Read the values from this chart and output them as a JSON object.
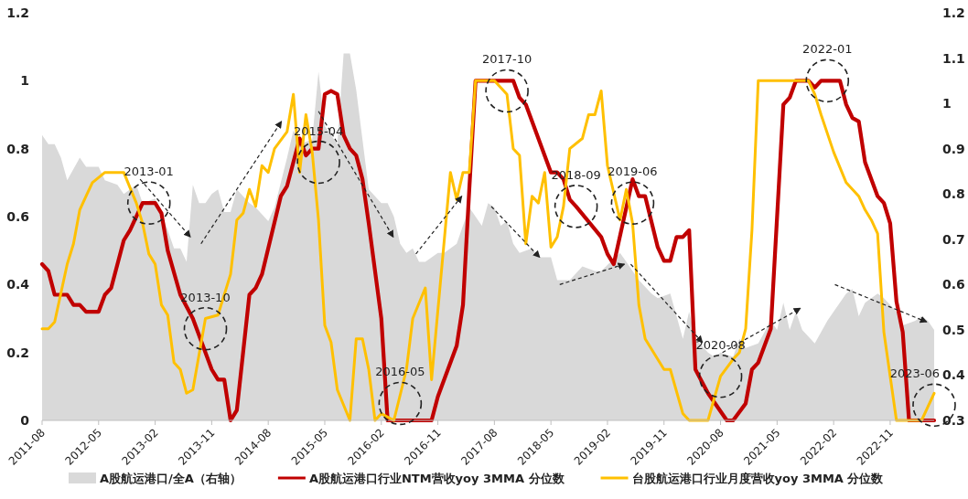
{
  "chart_data": {
    "type": "line",
    "xlim": [
      "2011-08",
      "2023-06"
    ],
    "xticks": [
      "2011-08",
      "2012-05",
      "2013-02",
      "2013-11",
      "2014-08",
      "2015-05",
      "2016-02",
      "2016-11",
      "2017-08",
      "2018-05",
      "2019-02",
      "2019-11",
      "2020-08",
      "2021-05",
      "2022-02",
      "2022-11"
    ],
    "ylim": [
      0,
      1.2
    ],
    "yticks": [
      0,
      0.2,
      0.4,
      0.6,
      0.8,
      1,
      1.2
    ],
    "y2lim": [
      0.3,
      1.2
    ],
    "y2ticks": [
      0.3,
      0.4,
      0.5,
      0.6,
      0.7,
      0.8,
      0.9,
      1,
      1.1,
      1.2
    ],
    "legend": "bottom",
    "grid": false,
    "series": [
      {
        "name": "A股航运港口/全A（右轴）",
        "type": "area",
        "axis": "y2",
        "color": "#d9d9d9",
        "x": [
          "2011-08",
          "2011-09",
          "2011-10",
          "2011-11",
          "2011-12",
          "2012-02",
          "2012-03",
          "2012-05",
          "2012-06",
          "2012-08",
          "2012-09",
          "2012-11",
          "2012-12",
          "2013-02",
          "2013-04",
          "2013-05",
          "2013-06",
          "2013-07",
          "2013-08",
          "2013-09",
          "2013-10",
          "2013-11",
          "2013-12",
          "2014-01",
          "2014-02",
          "2014-03",
          "2014-05",
          "2014-06",
          "2014-08",
          "2014-09",
          "2014-11",
          "2014-12",
          "2015-01",
          "2015-03",
          "2015-04",
          "2015-05",
          "2015-07",
          "2015-08",
          "2015-09",
          "2015-10",
          "2015-11",
          "2015-12",
          "2016-02",
          "2016-03",
          "2016-04",
          "2016-05",
          "2016-06",
          "2016-07",
          "2016-08",
          "2016-09",
          "2016-11",
          "2016-12",
          "2017-02",
          "2017-04",
          "2017-05",
          "2017-06",
          "2017-07",
          "2017-08",
          "2017-09",
          "2017-10",
          "2017-11",
          "2017-12",
          "2018-02",
          "2018-03",
          "2018-05",
          "2018-06",
          "2018-08",
          "2018-10",
          "2018-12",
          "2019-01",
          "2019-04",
          "2019-05",
          "2019-07",
          "2019-09",
          "2019-10",
          "2019-12",
          "2020-01",
          "2020-02",
          "2020-03",
          "2020-04",
          "2020-06",
          "2020-07",
          "2020-08",
          "2020-10",
          "2020-11",
          "2020-12",
          "2021-02",
          "2021-04",
          "2021-05",
          "2021-06",
          "2021-07",
          "2021-08",
          "2021-09",
          "2021-11",
          "2022-01",
          "2022-02",
          "2022-04",
          "2022-05",
          "2022-06",
          "2022-07",
          "2022-09",
          "2022-10",
          "2022-12",
          "2023-01",
          "2023-03",
          "2023-04",
          "2023-05",
          "2023-06"
        ],
        "values": [
          0.93,
          0.91,
          0.91,
          0.88,
          0.83,
          0.88,
          0.86,
          0.86,
          0.83,
          0.82,
          0.8,
          0.82,
          0.78,
          0.79,
          0.72,
          0.68,
          0.68,
          0.65,
          0.82,
          0.78,
          0.78,
          0.8,
          0.81,
          0.76,
          0.76,
          0.81,
          0.78,
          0.77,
          0.74,
          0.77,
          0.88,
          0.94,
          0.91,
          0.92,
          1.07,
          0.95,
          0.91,
          1.11,
          1.11,
          1.03,
          0.92,
          0.81,
          0.78,
          0.78,
          0.75,
          0.69,
          0.67,
          0.68,
          0.65,
          0.65,
          0.67,
          0.67,
          0.69,
          0.77,
          0.75,
          0.73,
          0.78,
          0.77,
          0.73,
          0.74,
          0.69,
          0.67,
          0.68,
          0.66,
          0.66,
          0.61,
          0.61,
          0.64,
          0.63,
          0.63,
          0.67,
          0.65,
          0.61,
          0.58,
          0.57,
          0.58,
          0.53,
          0.48,
          0.54,
          0.48,
          0.45,
          0.44,
          0.45,
          0.44,
          0.48,
          0.46,
          0.47,
          0.52,
          0.5,
          0.56,
          0.5,
          0.54,
          0.5,
          0.47,
          0.52,
          0.54,
          0.58,
          0.59,
          0.53,
          0.56,
          0.58,
          0.57,
          0.54,
          0.51,
          0.52,
          0.53,
          0.52,
          0.5
        ]
      },
      {
        "name": "A股航运港口行业NTM营收yoy 3MMA 分位数",
        "color": "#c00000",
        "x": [
          "2011-08",
          "2011-09",
          "2011-10",
          "2011-12",
          "2012-01",
          "2012-02",
          "2012-03",
          "2012-05",
          "2012-06",
          "2012-07",
          "2012-09",
          "2012-10",
          "2012-12",
          "2013-02",
          "2013-03",
          "2013-04",
          "2013-06",
          "2013-08",
          "2013-11",
          "2013-12",
          "2014-01",
          "2014-02",
          "2014-03",
          "2014-05",
          "2014-06",
          "2014-07",
          "2014-10",
          "2014-11",
          "2015-01",
          "2015-02",
          "2015-03",
          "2015-04",
          "2015-05",
          "2015-06",
          "2015-07",
          "2015-08",
          "2015-09",
          "2015-10",
          "2015-11",
          "2015-12",
          "2016-02",
          "2016-03",
          "2016-10",
          "2016-11",
          "2017-02",
          "2017-03",
          "2017-04",
          "2017-05",
          "2017-11",
          "2017-12",
          "2018-01",
          "2018-05",
          "2018-06",
          "2018-07",
          "2018-08",
          "2018-09",
          "2019-01",
          "2019-02",
          "2019-03",
          "2019-06",
          "2019-07",
          "2019-08",
          "2019-10",
          "2019-11",
          "2019-12",
          "2020-01",
          "2020-02",
          "2020-03",
          "2020-04",
          "2020-06",
          "2020-09",
          "2020-10",
          "2020-12",
          "2021-01",
          "2021-02",
          "2021-04",
          "2021-06",
          "2021-07",
          "2021-08",
          "2021-10",
          "2021-11",
          "2021-12",
          "2022-03",
          "2022-04",
          "2022-05",
          "2022-06",
          "2022-07",
          "2022-09",
          "2022-10",
          "2022-11",
          "2022-12",
          "2023-01",
          "2023-02",
          "2023-06"
        ],
        "values": [
          0.46,
          0.44,
          0.37,
          0.37,
          0.34,
          0.34,
          0.32,
          0.32,
          0.37,
          0.39,
          0.53,
          0.56,
          0.64,
          0.64,
          0.61,
          0.5,
          0.37,
          0.3,
          0.15,
          0.12,
          0.12,
          0,
          0.03,
          0.37,
          0.39,
          0.43,
          0.66,
          0.69,
          0.83,
          0.78,
          0.8,
          0.8,
          0.96,
          0.97,
          0.96,
          0.84,
          0.8,
          0.78,
          0.71,
          0.58,
          0.3,
          0,
          0,
          0.07,
          0.22,
          0.34,
          0.68,
          1,
          1,
          0.95,
          0.93,
          0.73,
          0.73,
          0.71,
          0.65,
          0.63,
          0.54,
          0.49,
          0.46,
          0.71,
          0.66,
          0.66,
          0.51,
          0.47,
          0.47,
          0.54,
          0.54,
          0.56,
          0.15,
          0.08,
          0,
          0,
          0.05,
          0.15,
          0.17,
          0.27,
          0.93,
          0.95,
          1,
          1,
          0.98,
          1,
          1,
          0.93,
          0.89,
          0.88,
          0.76,
          0.66,
          0.64,
          0.58,
          0.35,
          0.26,
          0,
          0
        ]
      },
      {
        "name": "台股航运港口行业月度营收yoy 3MMA 分位数",
        "color": "#ffc000",
        "x": [
          "2011-08",
          "2011-09",
          "2011-10",
          "2011-12",
          "2012-01",
          "2012-02",
          "2012-03",
          "2012-04",
          "2012-06",
          "2012-09",
          "2012-11",
          "2012-12",
          "2013-01",
          "2013-02",
          "2013-03",
          "2013-04",
          "2013-05",
          "2013-06",
          "2013-07",
          "2013-08",
          "2013-10",
          "2013-12",
          "2014-02",
          "2014-03",
          "2014-04",
          "2014-05",
          "2014-06",
          "2014-07",
          "2014-08",
          "2014-09",
          "2014-11",
          "2014-12",
          "2015-01",
          "2015-02",
          "2015-03",
          "2015-04",
          "2015-05",
          "2015-06",
          "2015-07",
          "2015-09",
          "2015-10",
          "2015-11",
          "2015-12",
          "2016-01",
          "2016-02",
          "2016-04",
          "2016-06",
          "2016-07",
          "2016-09",
          "2016-10",
          "2017-01",
          "2017-02",
          "2017-03",
          "2017-04",
          "2017-05",
          "2017-08",
          "2017-10",
          "2017-11",
          "2017-12",
          "2018-01",
          "2018-02",
          "2018-03",
          "2018-04",
          "2018-05",
          "2018-06",
          "2018-07",
          "2018-08",
          "2018-10",
          "2018-11",
          "2018-12",
          "2019-01",
          "2019-02",
          "2019-04",
          "2019-05",
          "2019-06",
          "2019-07",
          "2019-08",
          "2019-11",
          "2019-12",
          "2020-02",
          "2020-03",
          "2020-06",
          "2020-08",
          "2020-10",
          "2020-11",
          "2020-12",
          "2021-01",
          "2021-02",
          "2021-10",
          "2021-11",
          "2021-12",
          "2022-02",
          "2022-04",
          "2022-06",
          "2022-07",
          "2022-08",
          "2022-09",
          "2022-10",
          "2022-12",
          "2023-04",
          "2023-05",
          "2023-06"
        ],
        "values": [
          0.27,
          0.27,
          0.29,
          0.46,
          0.52,
          0.62,
          0.66,
          0.7,
          0.73,
          0.73,
          0.64,
          0.58,
          0.49,
          0.46,
          0.34,
          0.31,
          0.17,
          0.15,
          0.08,
          0.09,
          0.3,
          0.31,
          0.43,
          0.59,
          0.61,
          0.68,
          0.63,
          0.75,
          0.73,
          0.8,
          0.85,
          0.96,
          0.73,
          0.9,
          0.79,
          0.59,
          0.28,
          0.23,
          0.09,
          0,
          0.24,
          0.24,
          0.15,
          0,
          0.02,
          0,
          0.15,
          0.3,
          0.39,
          0.12,
          0.73,
          0.65,
          0.73,
          0.73,
          1,
          1,
          0.96,
          0.8,
          0.78,
          0.52,
          0.66,
          0.64,
          0.73,
          0.51,
          0.54,
          0.63,
          0.8,
          0.83,
          0.9,
          0.9,
          0.97,
          0.75,
          0.59,
          0.68,
          0.58,
          0.34,
          0.24,
          0.15,
          0.15,
          0.02,
          0,
          0,
          0.13,
          0.18,
          0.2,
          0.27,
          0.56,
          1,
          1,
          0.96,
          0.9,
          0.79,
          0.7,
          0.66,
          0.62,
          0.59,
          0.55,
          0.26,
          0,
          0,
          0.04,
          0.08
        ]
      }
    ],
    "annotations": [
      {
        "text": "2013-01",
        "x": "2013-01",
        "y": 0.64
      },
      {
        "text": "2013-10",
        "x": "2013-10",
        "y": 0.27
      },
      {
        "text": "2015-04",
        "x": "2015-04",
        "y": 0.76
      },
      {
        "text": "2016-05",
        "x": "2016-05",
        "y": 0.05
      },
      {
        "text": "2017-10",
        "x": "2017-10",
        "y": 0.97
      },
      {
        "text": "2018-09",
        "x": "2018-09",
        "y": 0.63
      },
      {
        "text": "2019-06",
        "x": "2019-06",
        "y": 0.64
      },
      {
        "text": "2020-08",
        "x": "2020-08",
        "y": 0.13
      },
      {
        "text": "2022-01",
        "x": "2022-01",
        "y": 1
      },
      {
        "text": "2023-06",
        "x": "2023-06",
        "y": 0.045
      }
    ]
  }
}
